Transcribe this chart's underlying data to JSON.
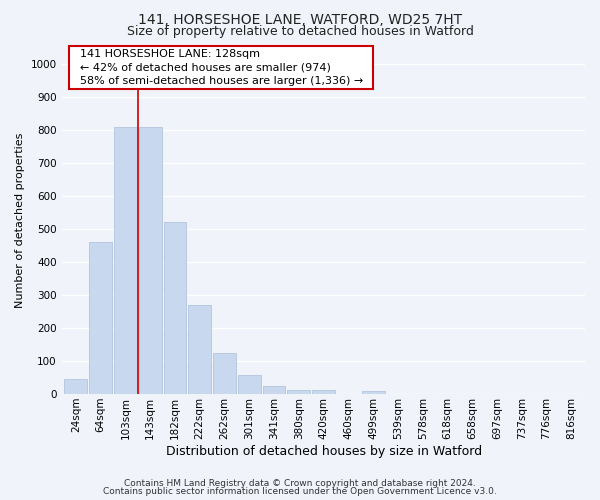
{
  "title1": "141, HORSESHOE LANE, WATFORD, WD25 7HT",
  "title2": "Size of property relative to detached houses in Watford",
  "xlabel": "Distribution of detached houses by size in Watford",
  "ylabel": "Number of detached properties",
  "footer1": "Contains HM Land Registry data © Crown copyright and database right 2024.",
  "footer2": "Contains public sector information licensed under the Open Government Licence v3.0.",
  "annotation_line1": "141 HORSESHOE LANE: 128sqm",
  "annotation_line2": "← 42% of detached houses are smaller (974)",
  "annotation_line3": "58% of semi-detached houses are larger (1,336) →",
  "bar_labels": [
    "24sqm",
    "64sqm",
    "103sqm",
    "143sqm",
    "182sqm",
    "222sqm",
    "262sqm",
    "301sqm",
    "341sqm",
    "380sqm",
    "420sqm",
    "460sqm",
    "499sqm",
    "539sqm",
    "578sqm",
    "618sqm",
    "658sqm",
    "697sqm",
    "737sqm",
    "776sqm",
    "816sqm"
  ],
  "bar_values": [
    47,
    460,
    810,
    810,
    520,
    270,
    123,
    57,
    23,
    12,
    12,
    0,
    8,
    0,
    0,
    0,
    0,
    0,
    0,
    0,
    0
  ],
  "bar_color": "#c8d8ee",
  "bar_edge_color": "#aabdd8",
  "vline_x": 2.5,
  "vline_color": "#cc0000",
  "ylim": [
    0,
    1050
  ],
  "yticks": [
    0,
    100,
    200,
    300,
    400,
    500,
    600,
    700,
    800,
    900,
    1000
  ],
  "bg_color": "#f0f4fa",
  "plot_bg_color": "#f0f4fa",
  "grid_color": "#ffffff",
  "annotation_box_edge": "#cc0000",
  "title1_fontsize": 10,
  "title2_fontsize": 9,
  "tick_fontsize": 7.5,
  "xlabel_fontsize": 9,
  "ylabel_fontsize": 8,
  "annotation_fontsize": 8,
  "footer_fontsize": 6.5
}
